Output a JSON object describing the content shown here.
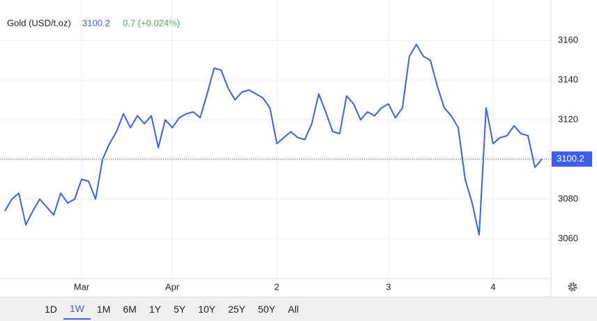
{
  "chart_data": {
    "type": "line",
    "title": "Gold (USD/t.oz)",
    "last_price": 3100.2,
    "change": "0.7 (+0.024%)",
    "categories": [
      null,
      null,
      null,
      null,
      null,
      null,
      null,
      null,
      null,
      null,
      null,
      "Mar",
      null,
      null,
      null,
      null,
      null,
      null,
      null,
      null,
      null,
      null,
      null,
      null,
      "Apr",
      null,
      null,
      null,
      null,
      null,
      null,
      null,
      null,
      null,
      null,
      null,
      null,
      null,
      null,
      "2",
      null,
      null,
      null,
      null,
      null,
      null,
      null,
      null,
      null,
      null,
      null,
      null,
      null,
      null,
      null,
      "3",
      null,
      null,
      null,
      null,
      null,
      null,
      null,
      null,
      null,
      null,
      null,
      null,
      null,
      null,
      "4",
      null,
      null,
      null,
      null,
      null,
      null,
      null
    ],
    "series": [
      {
        "name": "Gold",
        "color": "#3d5ef0",
        "values": [
          3074,
          3080,
          3083,
          3067,
          3074,
          3080,
          3076,
          3072,
          3083,
          3078,
          3080,
          3090,
          3089,
          3080,
          3100,
          3108,
          3114,
          3123,
          3116,
          3122,
          3118,
          3122,
          3106,
          3120,
          3116,
          3121,
          3123,
          3124,
          3121,
          3133,
          3146,
          3145,
          3136,
          3130,
          3134,
          3135,
          3133,
          3131,
          3126,
          3108,
          3111,
          3114,
          3111,
          3110,
          3118,
          3133,
          3124,
          3114,
          3113,
          3132,
          3128,
          3120,
          3124,
          3122,
          3126,
          3128,
          3121,
          3126,
          3152,
          3158,
          3152,
          3150,
          3137,
          3126,
          3122,
          3116,
          3090,
          3078,
          3062,
          3126,
          3108,
          3111,
          3112,
          3117,
          3113,
          3112,
          3096,
          3100.2
        ]
      }
    ],
    "ylim": [
      3040,
      3178.6
    ],
    "yticks": [
      3060,
      3080,
      3100,
      3120,
      3140,
      3160
    ],
    "grid": true,
    "ranges": [
      "1D",
      "1W",
      "1M",
      "6M",
      "1Y",
      "5Y",
      "10Y",
      "25Y",
      "50Y",
      "All"
    ],
    "selected_range": 1
  }
}
